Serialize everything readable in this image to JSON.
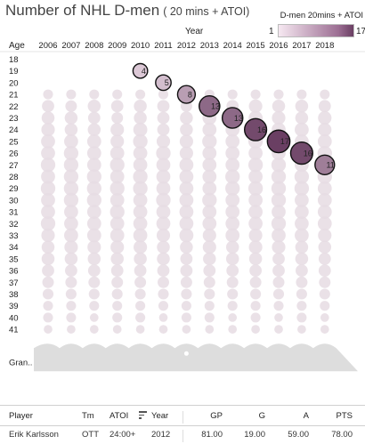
{
  "header": {
    "title": "Number of NHL D-men",
    "subtitle": "( 20 mins + ATOI)"
  },
  "legend": {
    "title": "D-men 20mins + ATOI",
    "min": "1",
    "max": "17",
    "color_low": "#f6e8f1",
    "color_high": "#6a3f63"
  },
  "chart_data": {
    "type": "scatter",
    "xlabel": "Year",
    "ylabel": "Age",
    "years": [
      "2006",
      "2007",
      "2008",
      "2009",
      "2010",
      "2011",
      "2012",
      "2013",
      "2014",
      "2015",
      "2016",
      "2017",
      "2018"
    ],
    "ages": [
      "18",
      "19",
      "20",
      "21",
      "22",
      "23",
      "24",
      "25",
      "26",
      "27",
      "28",
      "29",
      "30",
      "31",
      "32",
      "33",
      "34",
      "35",
      "36",
      "37",
      "38",
      "39",
      "40",
      "41"
    ],
    "grand_total_label": "Gran..",
    "highlight_series": {
      "player": "Erik Karlsson",
      "points": [
        {
          "year": "2010",
          "age": "19",
          "label": "4"
        },
        {
          "year": "2011",
          "age": "20",
          "label": "5"
        },
        {
          "year": "2012",
          "age": "21",
          "label": "8"
        },
        {
          "year": "2013",
          "age": "22",
          "label": "13"
        },
        {
          "year": "2014",
          "age": "23",
          "label": "13"
        },
        {
          "year": "2015",
          "age": "24",
          "label": "16"
        },
        {
          "year": "2016",
          "age": "25",
          "label": "17"
        },
        {
          "year": "2017",
          "age": "26",
          "label": "16"
        },
        {
          "year": "2018",
          "age": "27",
          "label": "11"
        }
      ]
    },
    "background_counts": [
      [
        0,
        0,
        0,
        0,
        0,
        0,
        0,
        0,
        0,
        0,
        0,
        0,
        0
      ],
      [
        0,
        0,
        0,
        0,
        4,
        0,
        0,
        0,
        0,
        0,
        0,
        0,
        0
      ],
      [
        0,
        0,
        0,
        0,
        0,
        5,
        0,
        0,
        0,
        0,
        0,
        0,
        0
      ],
      [
        2,
        2,
        2,
        2,
        2,
        2,
        8,
        2,
        2,
        2,
        2,
        2,
        2
      ],
      [
        5,
        4,
        6,
        5,
        6,
        5,
        4,
        13,
        5,
        7,
        6,
        6,
        5
      ],
      [
        6,
        6,
        5,
        4,
        6,
        5,
        6,
        8,
        13,
        8,
        7,
        6,
        7
      ],
      [
        7,
        6,
        6,
        7,
        8,
        5,
        6,
        8,
        8,
        16,
        8,
        8,
        7
      ],
      [
        8,
        8,
        8,
        7,
        9,
        7,
        7,
        9,
        8,
        9,
        17,
        8,
        8
      ],
      [
        8,
        9,
        8,
        8,
        8,
        9,
        7,
        8,
        8,
        8,
        8,
        16,
        9
      ],
      [
        9,
        9,
        8,
        9,
        8,
        8,
        8,
        8,
        8,
        9,
        9,
        8,
        11
      ],
      [
        8,
        9,
        9,
        8,
        9,
        8,
        8,
        8,
        9,
        8,
        9,
        9,
        9
      ],
      [
        9,
        9,
        9,
        9,
        9,
        8,
        8,
        8,
        9,
        9,
        9,
        9,
        8
      ],
      [
        8,
        9,
        9,
        8,
        8,
        9,
        8,
        9,
        8,
        8,
        9,
        8,
        8
      ],
      [
        8,
        8,
        8,
        9,
        8,
        8,
        8,
        8,
        8,
        8,
        8,
        8,
        8
      ],
      [
        9,
        8,
        8,
        8,
        8,
        8,
        8,
        8,
        8,
        8,
        9,
        8,
        8
      ],
      [
        7,
        8,
        8,
        8,
        8,
        7,
        8,
        7,
        8,
        7,
        8,
        8,
        7
      ],
      [
        6,
        7,
        7,
        7,
        7,
        6,
        6,
        7,
        6,
        7,
        7,
        6,
        6
      ],
      [
        6,
        6,
        6,
        6,
        6,
        6,
        5,
        6,
        6,
        6,
        5,
        6,
        5
      ],
      [
        5,
        5,
        5,
        5,
        5,
        5,
        5,
        5,
        5,
        5,
        5,
        5,
        5
      ],
      [
        4,
        4,
        4,
        4,
        4,
        4,
        4,
        4,
        4,
        4,
        4,
        4,
        4
      ],
      [
        3,
        3,
        3,
        3,
        3,
        3,
        3,
        3,
        3,
        3,
        3,
        3,
        3
      ],
      [
        2,
        2,
        2,
        2,
        2,
        2,
        2,
        2,
        2,
        2,
        2,
        2,
        2
      ],
      [
        2,
        2,
        1,
        2,
        2,
        1,
        2,
        2,
        1,
        2,
        1,
        2,
        1
      ],
      [
        1,
        1,
        1,
        1,
        1,
        1,
        1,
        1,
        1,
        1,
        1,
        1,
        1
      ]
    ]
  },
  "table": {
    "columns": {
      "player": "Player",
      "team": "Tm",
      "atoi": "ATOI",
      "year": "Year",
      "gp": "GP",
      "g": "G",
      "a": "A",
      "pts": "PTS"
    },
    "row": {
      "player": "Erik Karlsson",
      "team": "OTT",
      "atoi": "24:00+",
      "year": "2012",
      "gp": "81.00",
      "g": "19.00",
      "a": "59.00",
      "pts": "78.00"
    }
  }
}
